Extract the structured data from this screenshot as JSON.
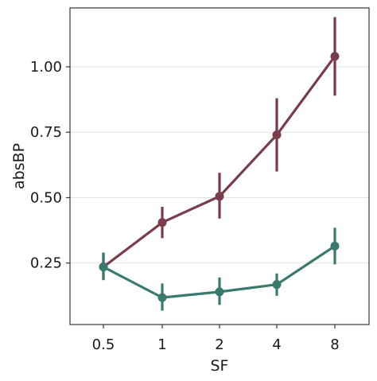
{
  "chart_data": {
    "type": "line",
    "title": "",
    "xlabel": "SF",
    "ylabel": "absBP",
    "categories": [
      "0.5",
      "1",
      "2",
      "4",
      "8"
    ],
    "ylim": [
      0.015,
      1.225
    ],
    "yticks": [
      0.25,
      0.5,
      0.75,
      1.0
    ],
    "ytick_labels": [
      "0.25",
      "0.50",
      "0.75",
      "1.00"
    ],
    "grid": "horizontal major lines",
    "legend": "none",
    "series": [
      {
        "color": "#7a3b4b",
        "values": [
          0.235,
          0.405,
          0.505,
          0.74,
          1.04
        ],
        "err_low": [
          0.185,
          0.345,
          0.42,
          0.6,
          0.89
        ],
        "err_high": [
          0.29,
          0.465,
          0.595,
          0.88,
          1.19
        ]
      },
      {
        "color": "#3a7a6e",
        "values": [
          0.235,
          0.118,
          0.14,
          0.168,
          0.315
        ],
        "err_low": [
          0.185,
          0.068,
          0.09,
          0.125,
          0.245
        ],
        "err_high": [
          0.29,
          0.172,
          0.195,
          0.21,
          0.385
        ]
      }
    ]
  }
}
